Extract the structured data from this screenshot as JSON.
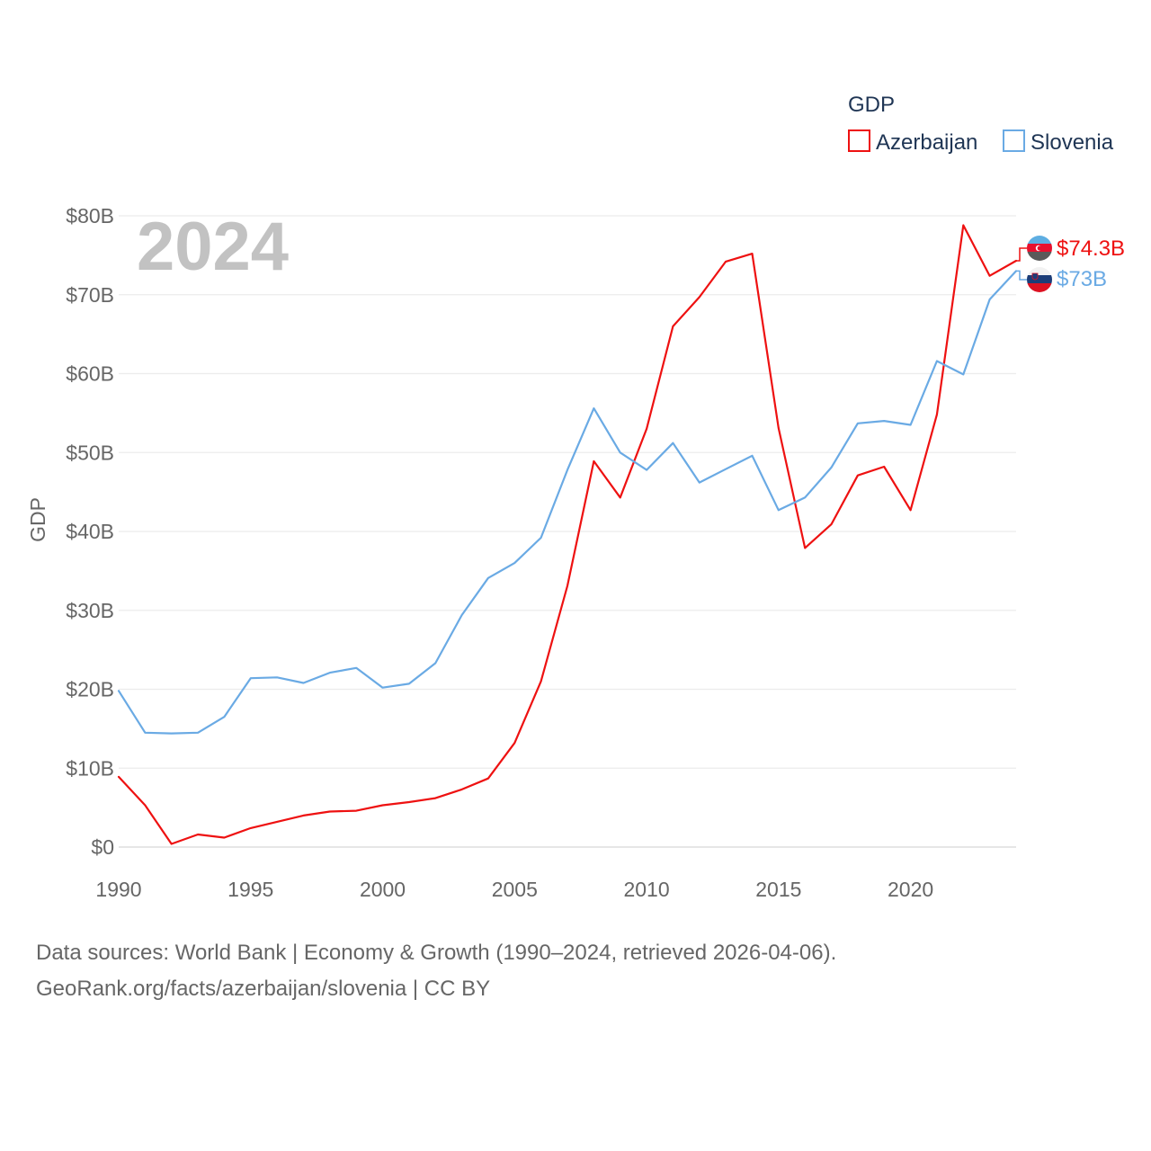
{
  "chart_data": {
    "type": "line",
    "legend_title": "GDP",
    "ylabel": "GDP",
    "year_overlay": "2024",
    "x": [
      1990,
      1991,
      1992,
      1993,
      1994,
      1995,
      1996,
      1997,
      1998,
      1999,
      2000,
      2001,
      2002,
      2003,
      2004,
      2005,
      2006,
      2007,
      2008,
      2009,
      2010,
      2011,
      2012,
      2013,
      2014,
      2015,
      2016,
      2017,
      2018,
      2019,
      2020,
      2021,
      2022,
      2023,
      2024
    ],
    "xlim": [
      1990,
      2024
    ],
    "ylim": [
      0,
      80
    ],
    "x_ticks": [
      "1990",
      "1995",
      "2000",
      "2005",
      "2010",
      "2015",
      "2020"
    ],
    "y_ticks": [
      "$0",
      "$10B",
      "$20B",
      "$30B",
      "$40B",
      "$50B",
      "$60B",
      "$70B",
      "$80B"
    ],
    "series": [
      {
        "name": "Azerbaijan",
        "color": "#ee1111",
        "end_label": "$74.3B",
        "flag_icon": "azerbaijan-flag-icon",
        "values": [
          8.9,
          5.3,
          0.4,
          1.6,
          1.2,
          2.4,
          3.2,
          4.0,
          4.5,
          4.6,
          5.3,
          5.7,
          6.2,
          7.3,
          8.7,
          13.2,
          21.0,
          33.1,
          48.9,
          44.3,
          53.0,
          66.0,
          69.7,
          74.2,
          75.2,
          53.1,
          37.9,
          40.9,
          47.1,
          48.2,
          42.7,
          54.8,
          78.8,
          72.4,
          74.3
        ]
      },
      {
        "name": "Slovenia",
        "color": "#6aaae4",
        "end_label": "$73B",
        "flag_icon": "slovenia-flag-icon",
        "values": [
          19.8,
          14.5,
          14.4,
          14.5,
          16.5,
          21.4,
          21.5,
          20.8,
          22.1,
          22.7,
          20.2,
          20.7,
          23.3,
          29.4,
          34.1,
          36.0,
          39.2,
          47.8,
          55.6,
          50.0,
          47.8,
          51.2,
          46.2,
          47.9,
          49.6,
          42.7,
          44.3,
          48.1,
          53.7,
          54.0,
          53.5,
          61.6,
          59.9,
          69.4,
          73.0
        ]
      }
    ]
  },
  "footer": {
    "line1": "Data sources: World Bank | Economy & Growth (1990–2024, retrieved 2026-04-06).",
    "line2": "GeoRank.org/facts/azerbaijan/slovenia | CC BY"
  }
}
